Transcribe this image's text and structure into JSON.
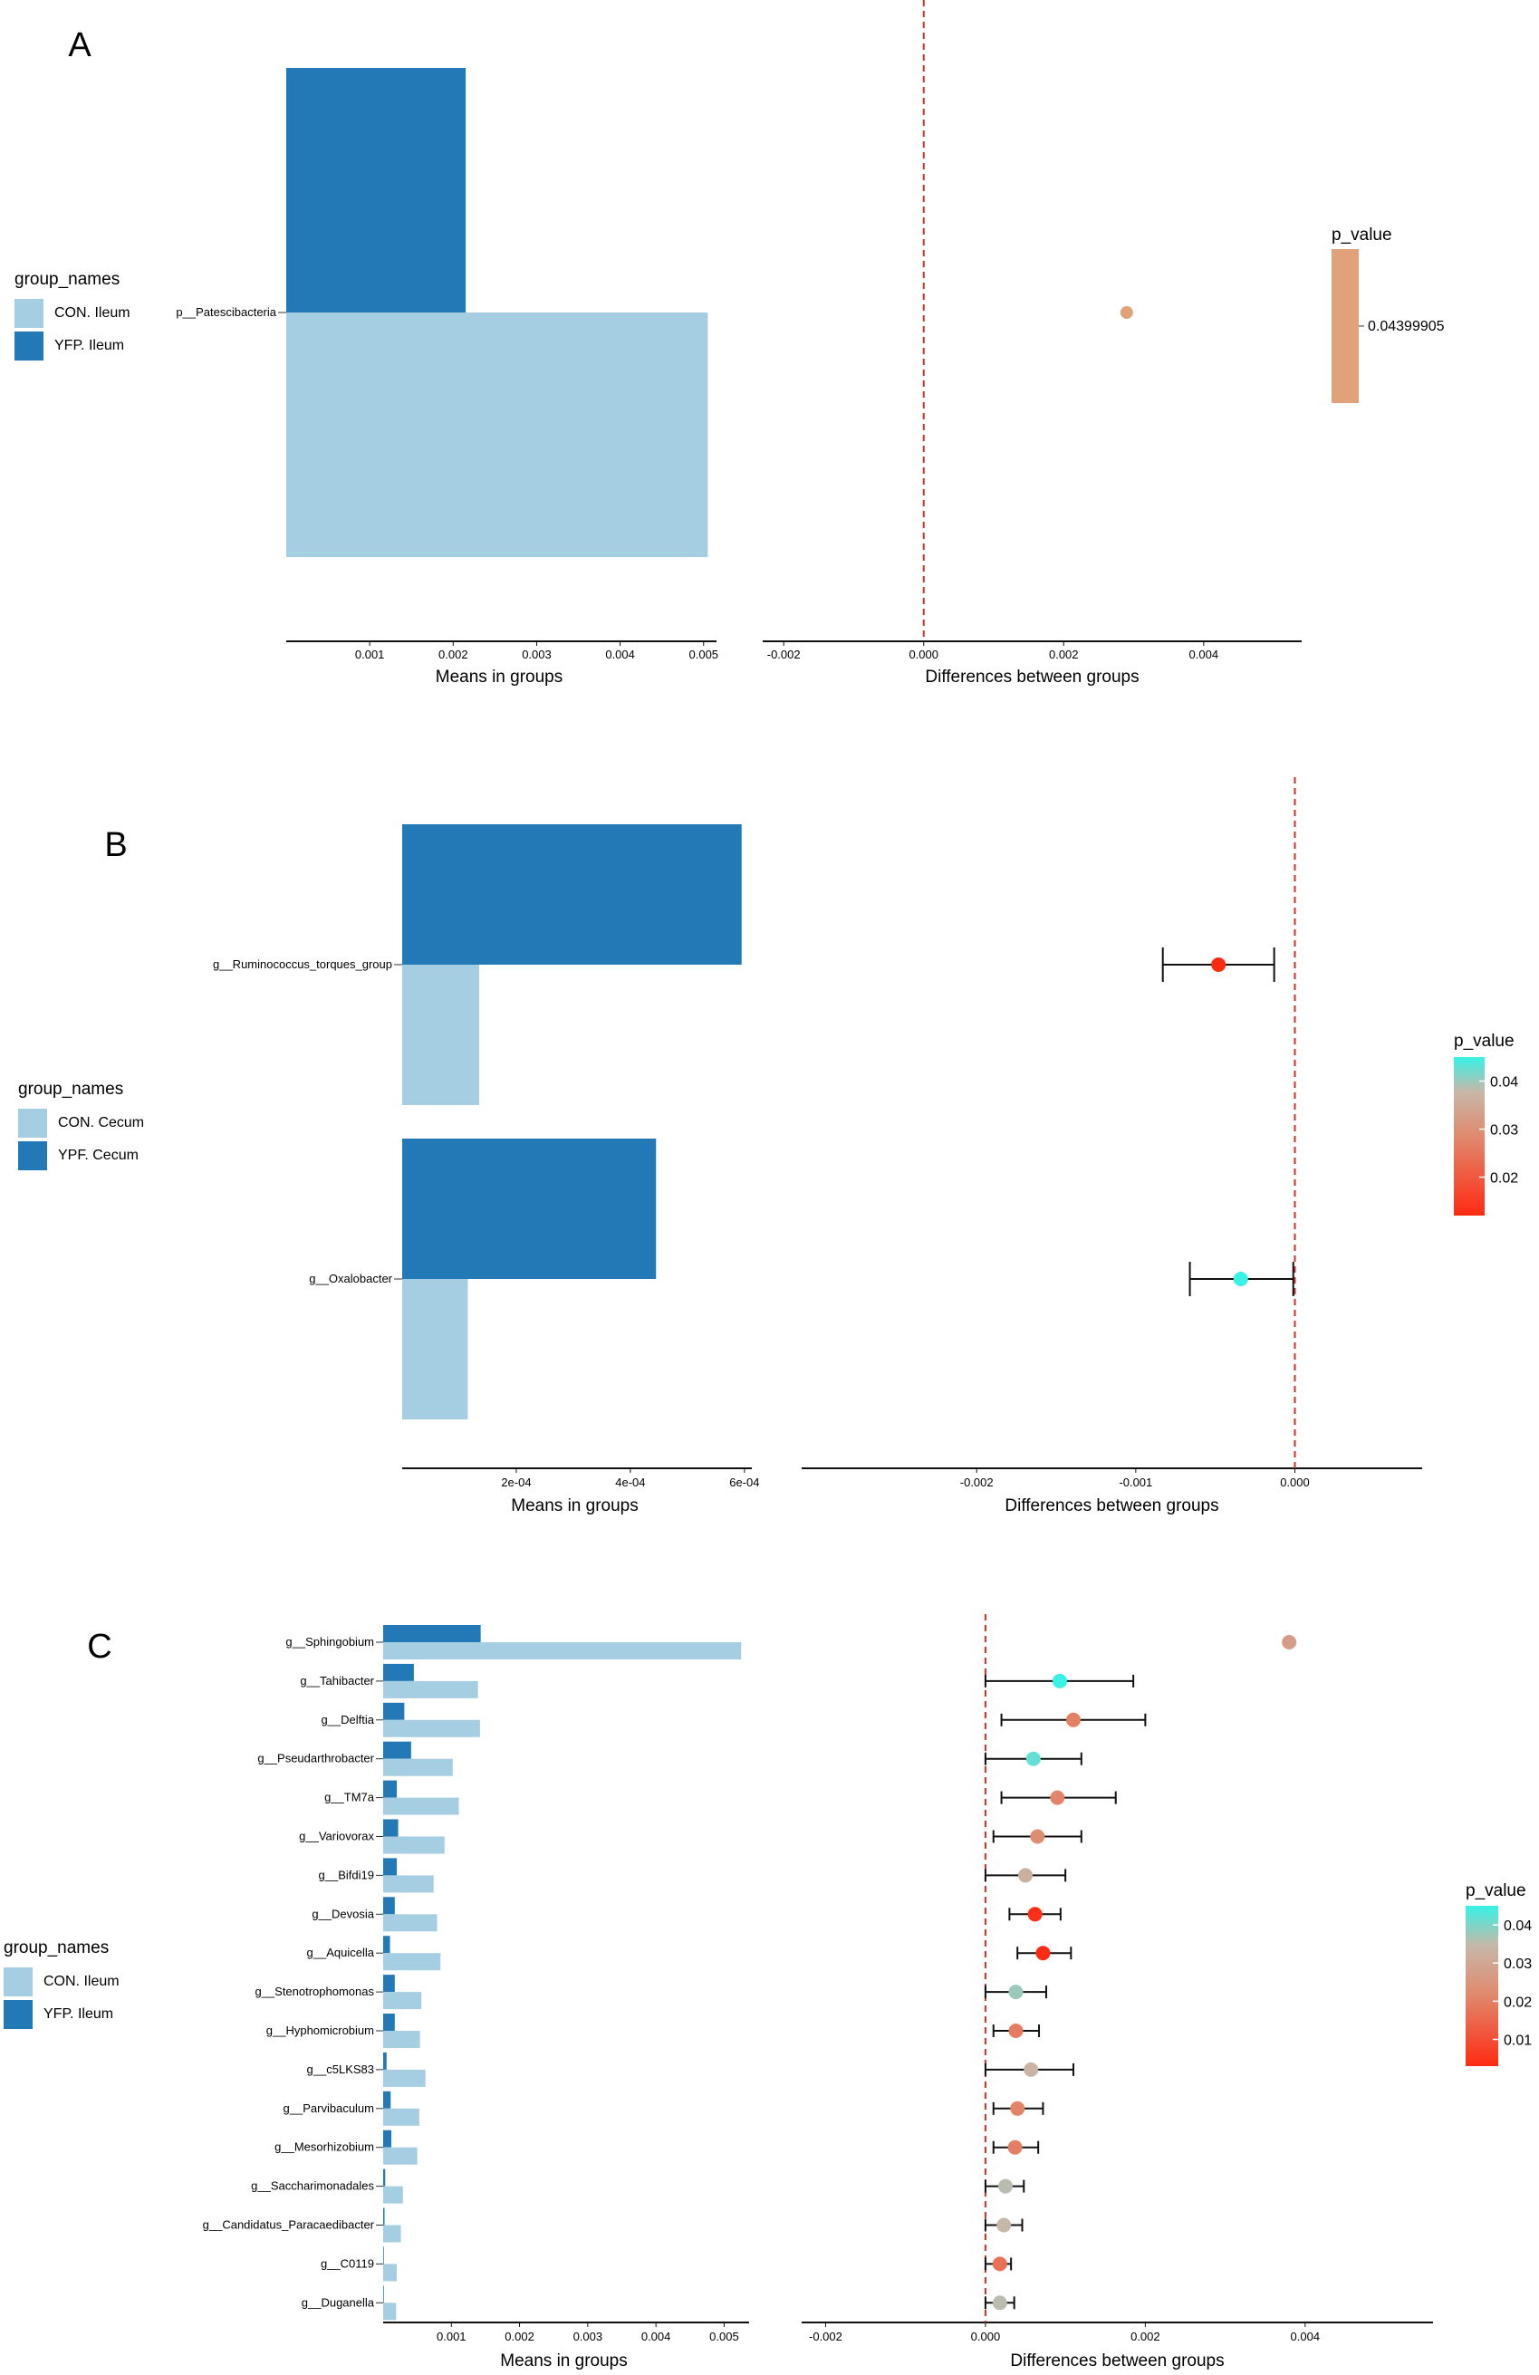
{
  "chart_data": [
    {
      "panel": "A",
      "type": "bar",
      "subtype": "extended_error_bar",
      "categories": [
        "p__Patescibacteria"
      ],
      "series": [
        {
          "name": "YFP. Ileum",
          "color": "#2279b5",
          "values": [
            0.00215
          ]
        },
        {
          "name": "CON. Ileum",
          "color": "#a6cee3",
          "values": [
            0.00505
          ]
        }
      ],
      "xlabel": "Means in groups",
      "xlim": [
        0.0,
        0.0051
      ],
      "xticks": [
        0.001,
        0.002,
        0.003,
        0.004,
        0.005
      ],
      "xtick_labels": [
        "0.001",
        "0.002",
        "0.003",
        "0.004",
        "0.005"
      ],
      "legend": {
        "title": "group_names",
        "items": [
          "CON. Ileum",
          "YFP. Ileum"
        ]
      },
      "differences": {
        "xlabel": "Differences between groups",
        "xlim": [
          -0.0023,
          0.0054
        ],
        "xticks": [
          -0.002,
          0.0,
          0.002,
          0.004
        ],
        "xtick_labels": [
          "-0.002",
          "0.000",
          "0.002",
          "0.004"
        ],
        "points": [
          {
            "category": "p__Patescibacteria",
            "diff": 0.0029,
            "p_value": 0.04399905
          }
        ]
      },
      "p_value_legend": {
        "title": "p_value",
        "labels": [
          "0.04399905"
        ],
        "color": "#e0a27a"
      }
    },
    {
      "panel": "B",
      "type": "bar",
      "subtype": "extended_error_bar",
      "categories": [
        "g__Ruminococcus_torques_group",
        "g__Oxalobacter"
      ],
      "series": [
        {
          "name": "YPF. Cecum",
          "color": "#2279b5",
          "values": [
            0.000595,
            0.000445
          ]
        },
        {
          "name": "CON. Cecum",
          "color": "#a6cee3",
          "values": [
            0.000135,
            0.000115
          ]
        }
      ],
      "xlabel": "Means in groups",
      "xlim": [
        0.0,
        0.000605
      ],
      "xticks": [
        0.0002,
        0.0004,
        0.0006
      ],
      "xtick_labels": [
        "2e-04",
        "4e-04",
        "6e-04"
      ],
      "legend": {
        "title": "group_names",
        "items": [
          "CON. Cecum",
          "YPF. Cecum"
        ]
      },
      "differences": {
        "xlabel": "Differences between groups",
        "xlim": [
          -0.0031,
          0.0008
        ],
        "xticks": [
          -0.002,
          -0.001,
          0.0
        ],
        "xtick_labels": [
          "-0.002",
          "-0.001",
          "0.000"
        ],
        "points": [
          {
            "category": "g__Ruminococcus_torques_group",
            "diff": -0.00048,
            "ci": [
              -0.00083,
              -0.00013
            ],
            "p_value": 0.012
          },
          {
            "category": "g__Oxalobacter",
            "diff": -0.00034,
            "ci": [
              -0.00066,
              -1e-05
            ],
            "p_value": 0.045
          }
        ]
      },
      "p_value_legend": {
        "title": "p_value",
        "labels": [
          "0.04",
          "0.03",
          "0.02"
        ],
        "range": [
          0.012,
          0.045
        ]
      }
    },
    {
      "panel": "C",
      "type": "bar",
      "subtype": "extended_error_bar",
      "categories": [
        "g__Sphingobium",
        "g__Tahibacter",
        "g__Delftia",
        "g__Pseudarthrobacter",
        "g__TM7a",
        "g__Variovorax",
        "g__Bifdi19",
        "g__Devosia",
        "g__Aquicella",
        "g__Stenotrophomonas",
        "g__Hyphomicrobium",
        "g__c5LKS83",
        "g__Parvibaculum",
        "g__Mesorhizobium",
        "g__Saccharimonadales",
        "g__Candidatus_Paracaedibacter",
        "g__C0119",
        "g__Duganella"
      ],
      "series": [
        {
          "name": "YFP. Ileum",
          "color": "#2279b5",
          "values": [
            0.00143,
            0.00045,
            0.00031,
            0.00041,
            0.0002,
            0.00022,
            0.0002,
            0.00017,
            0.0001,
            0.00017,
            0.00017,
            5e-05,
            0.00011,
            0.00012,
            3e-05,
            2e-05,
            1e-05,
            1e-05
          ]
        },
        {
          "name": "CON. Ileum",
          "color": "#a6cee3",
          "values": [
            0.00525,
            0.00139,
            0.00142,
            0.00102,
            0.00111,
            0.0009,
            0.00074,
            0.00079,
            0.00084,
            0.00056,
            0.00054,
            0.00062,
            0.00053,
            0.0005,
            0.00029,
            0.00026,
            0.0002,
            0.00019
          ]
        }
      ],
      "xlabel": "Means in groups",
      "xlim": [
        0.0,
        0.0053
      ],
      "xticks": [
        0.001,
        0.002,
        0.003,
        0.004,
        0.005
      ],
      "xtick_labels": [
        "0.001",
        "0.002",
        "0.003",
        "0.004",
        "0.005"
      ],
      "legend": {
        "title": "group_names",
        "items": [
          "CON. Ileum",
          "YFP. Ileum"
        ]
      },
      "differences": {
        "xlabel": "Differences between groups",
        "xlim": [
          -0.0023,
          0.0056
        ],
        "xticks": [
          -0.002,
          0.0,
          0.002,
          0.004
        ],
        "xtick_labels": [
          "-0.002",
          "0.000",
          "0.002",
          "0.004"
        ],
        "points": [
          {
            "category": "g__Sphingobium",
            "diff": 0.0038,
            "ci": [
              0.0038,
              0.0038
            ],
            "p_value": 0.028
          },
          {
            "category": "g__Tahibacter",
            "diff": 0.00093,
            "ci": [
              0.0,
              0.00185
            ],
            "p_value": 0.045
          },
          {
            "category": "g__Delftia",
            "diff": 0.0011,
            "ci": [
              0.0002,
              0.002
            ],
            "p_value": 0.021
          },
          {
            "category": "g__Pseudarthrobacter",
            "diff": 0.0006,
            "ci": [
              0.0,
              0.0012
            ],
            "p_value": 0.042
          },
          {
            "category": "g__TM7a",
            "diff": 0.0009,
            "ci": [
              0.0002,
              0.00163
            ],
            "p_value": 0.022
          },
          {
            "category": "g__Variovorax",
            "diff": 0.00065,
            "ci": [
              0.0001,
              0.0012
            ],
            "p_value": 0.024
          },
          {
            "category": "g__Bifdi19",
            "diff": 0.0005,
            "ci": [
              0.0,
              0.001
            ],
            "p_value": 0.033
          },
          {
            "category": "g__Devosia",
            "diff": 0.00062,
            "ci": [
              0.0003,
              0.00094
            ],
            "p_value": 0.004
          },
          {
            "category": "g__Aquicella",
            "diff": 0.00072,
            "ci": [
              0.0004,
              0.00107
            ],
            "p_value": 0.003
          },
          {
            "category": "g__Stenotrophomonas",
            "diff": 0.00038,
            "ci": [
              0.0,
              0.00076
            ],
            "p_value": 0.038
          },
          {
            "category": "g__Hyphomicrobium",
            "diff": 0.00038,
            "ci": [
              0.0001,
              0.00067
            ],
            "p_value": 0.02
          },
          {
            "category": "g__c5LKS83",
            "diff": 0.00057,
            "ci": [
              0.0,
              0.0011
            ],
            "p_value": 0.034
          },
          {
            "category": "g__Parvibaculum",
            "diff": 0.0004,
            "ci": [
              0.0001,
              0.00072
            ],
            "p_value": 0.022
          },
          {
            "category": "g__Mesorhizobium",
            "diff": 0.00037,
            "ci": [
              0.0001,
              0.00066
            ],
            "p_value": 0.021
          },
          {
            "category": "g__Saccharimonadales",
            "diff": 0.00025,
            "ci": [
              0.0,
              0.00048
            ],
            "p_value": 0.036
          },
          {
            "category": "g__Candidatus_Paracaedibacter",
            "diff": 0.00023,
            "ci": [
              0.0,
              0.00046
            ],
            "p_value": 0.035
          },
          {
            "category": "g__C0119",
            "diff": 0.00018,
            "ci": [
              0.0,
              0.00032
            ],
            "p_value": 0.018
          },
          {
            "category": "g__Duganella",
            "diff": 0.00018,
            "ci": [
              0.0,
              0.00036
            ],
            "p_value": 0.036
          }
        ]
      },
      "p_value_legend": {
        "title": "p_value",
        "labels": [
          "0.04",
          "0.03",
          "0.02",
          "0.01"
        ],
        "range": [
          0.003,
          0.045
        ]
      }
    }
  ]
}
